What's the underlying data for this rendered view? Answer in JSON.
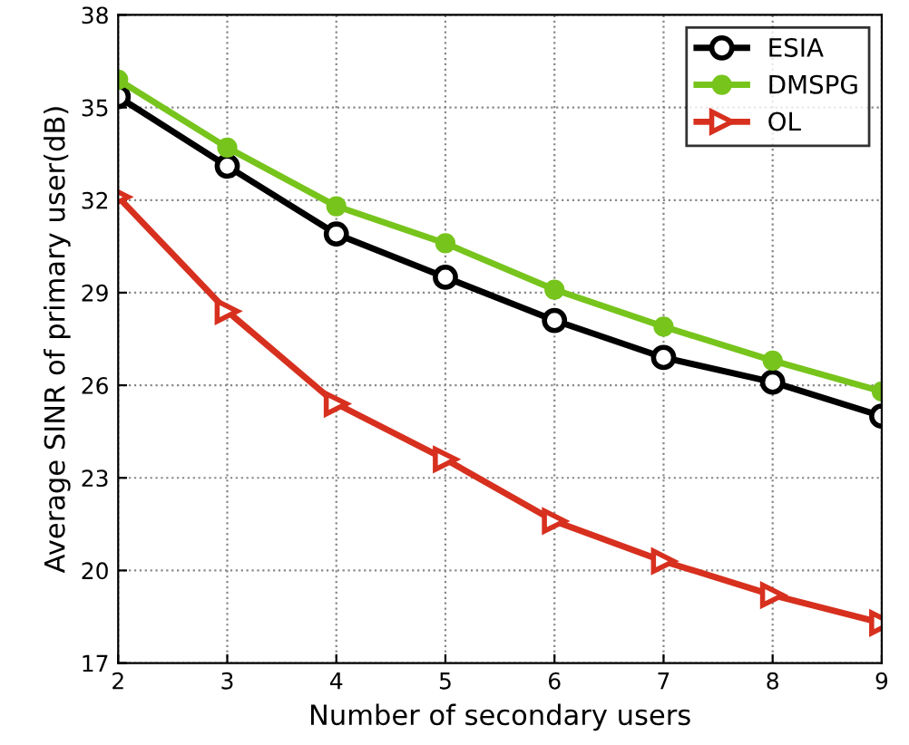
{
  "chart_data": {
    "type": "line",
    "xlabel": "Number of secondary users",
    "ylabel": "Average SINR of primary user(dB)",
    "x": [
      2,
      3,
      4,
      5,
      6,
      7,
      8,
      9
    ],
    "series": [
      {
        "name": "ESIA",
        "color": "#000000",
        "marker": "circle",
        "values": [
          35.35,
          33.1,
          30.9,
          29.5,
          28.1,
          26.9,
          26.1,
          25.0
        ]
      },
      {
        "name": "DMSPG",
        "color": "#77c41c",
        "marker": "circle",
        "values": [
          35.9,
          33.7,
          31.8,
          30.6,
          29.1,
          27.9,
          26.8,
          25.8
        ]
      },
      {
        "name": "OL",
        "color": "#d7301f",
        "marker": "triangle",
        "values": [
          32.1,
          28.4,
          25.4,
          23.6,
          21.6,
          20.3,
          19.2,
          18.3
        ]
      }
    ],
    "xlim": [
      2,
      9
    ],
    "xticks": [
      2,
      3,
      4,
      5,
      6,
      7,
      8,
      9
    ],
    "ylim": [
      17,
      38
    ],
    "yticks": [
      17,
      20,
      23,
      26,
      29,
      32,
      35,
      38
    ],
    "grid": true,
    "legend": "top right",
    "line_style": "solid"
  }
}
